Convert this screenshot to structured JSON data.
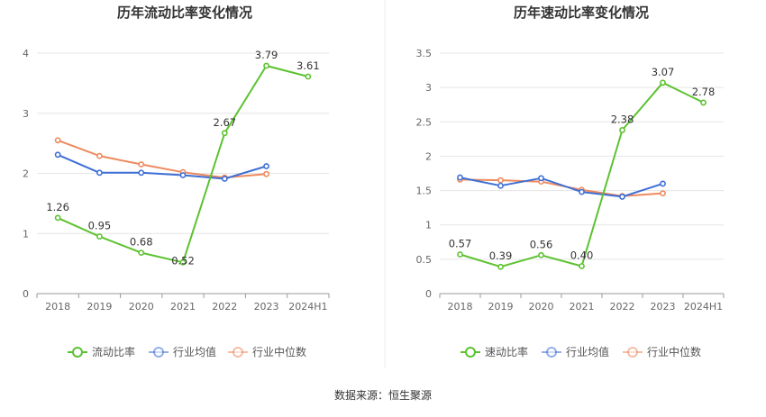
{
  "source_label": "数据来源：恒生聚源",
  "colors": {
    "green": "#5cc230",
    "blue": "#3e6fd6",
    "orange": "#ee8a5e",
    "grid": "#e5e5e5",
    "axis": "#999999"
  },
  "chart_data": [
    {
      "type": "line",
      "title": "历年流动比率变化情况",
      "categories": [
        "2018",
        "2019",
        "2020",
        "2021",
        "2022",
        "2023",
        "2024H1"
      ],
      "ylim": [
        0,
        4
      ],
      "yticks": [
        0,
        1,
        2,
        3,
        4
      ],
      "grid": true,
      "legend_position": "bottom",
      "series": [
        {
          "name": "流动比率",
          "color": "#5cc230",
          "values": [
            1.26,
            0.95,
            0.68,
            0.52,
            2.67,
            3.79,
            3.61
          ],
          "labels": [
            "1.26",
            "0.95",
            "0.68",
            "0.52",
            "2.67",
            "3.79",
            "3.61"
          ]
        },
        {
          "name": "行业均值",
          "color": "#3e6fd6",
          "values": [
            2.31,
            2.01,
            2.01,
            1.97,
            1.91,
            2.12,
            null
          ]
        },
        {
          "name": "行业中位数",
          "color": "#ee8a5e",
          "values": [
            2.55,
            2.29,
            2.15,
            2.02,
            1.93,
            1.99,
            null
          ]
        }
      ]
    },
    {
      "type": "line",
      "title": "历年速动比率变化情况",
      "categories": [
        "2018",
        "2019",
        "2020",
        "2021",
        "2022",
        "2023",
        "2024H1"
      ],
      "ylim": [
        0,
        3.5
      ],
      "yticks": [
        0,
        0.5,
        1,
        1.5,
        2,
        2.5,
        3,
        3.5
      ],
      "grid": true,
      "legend_position": "bottom",
      "series": [
        {
          "name": "速动比率",
          "color": "#5cc230",
          "values": [
            0.57,
            0.39,
            0.56,
            0.4,
            2.38,
            3.07,
            2.78
          ],
          "labels": [
            "0.57",
            "0.39",
            "0.56",
            "0.40",
            "2.38",
            "3.07",
            "2.78"
          ]
        },
        {
          "name": "行业均值",
          "color": "#3e6fd6",
          "values": [
            1.69,
            1.57,
            1.68,
            1.48,
            1.41,
            1.6,
            null
          ]
        },
        {
          "name": "行业中位数",
          "color": "#ee8a5e",
          "values": [
            1.66,
            1.65,
            1.63,
            1.51,
            1.42,
            1.46,
            null
          ]
        }
      ]
    }
  ]
}
